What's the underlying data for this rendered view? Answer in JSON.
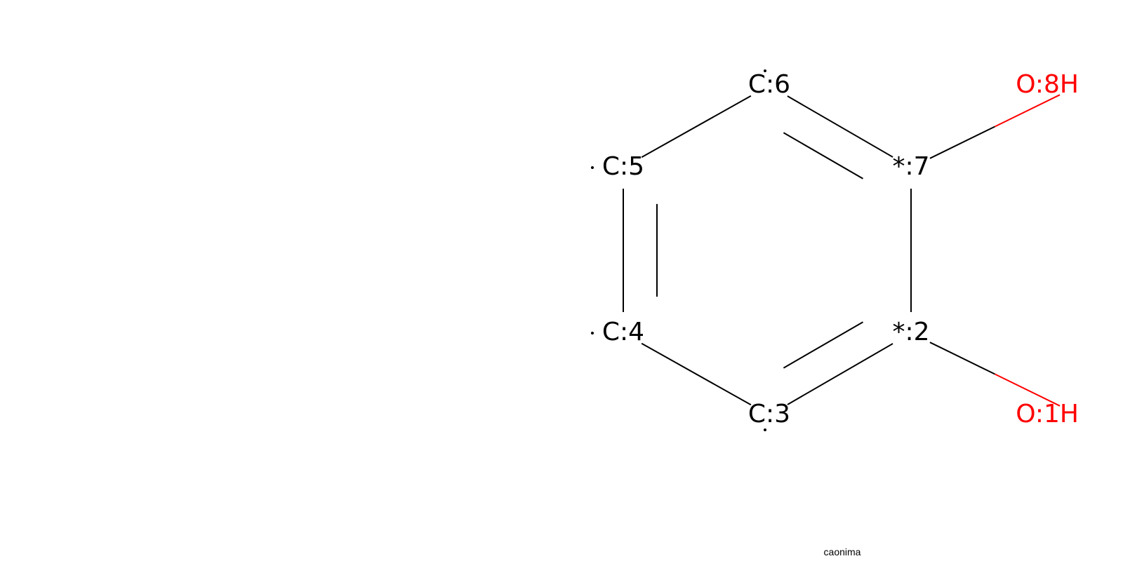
{
  "diagram": {
    "type": "molecule-structure",
    "colors": {
      "carbon": "#000000",
      "oxygen": "#ff0000",
      "background": "#ffffff"
    },
    "atoms": [
      {
        "id": "c6",
        "label": "C:6",
        "element": "C",
        "map": 6,
        "radical": "top"
      },
      {
        "id": "a7",
        "label": "*:7",
        "element": "*",
        "map": 7
      },
      {
        "id": "a2",
        "label": "*:2",
        "element": "*",
        "map": 2
      },
      {
        "id": "c3",
        "label": "C:3",
        "element": "C",
        "map": 3,
        "radical": "bottom"
      },
      {
        "id": "c4",
        "label": "C:4",
        "element": "C",
        "map": 4,
        "radical": "left"
      },
      {
        "id": "c5",
        "label": "C:5",
        "element": "C",
        "map": 5,
        "radical": "left"
      },
      {
        "id": "o8",
        "label": "O:8H",
        "element": "O",
        "map": 8
      },
      {
        "id": "o1",
        "label": "O:1H",
        "element": "O",
        "map": 1
      }
    ],
    "bonds": [
      {
        "from": "c5",
        "to": "c6",
        "order": 1
      },
      {
        "from": "c6",
        "to": "a7",
        "order": 2
      },
      {
        "from": "a7",
        "to": "a2",
        "order": 1
      },
      {
        "from": "a2",
        "to": "c3",
        "order": 2
      },
      {
        "from": "c3",
        "to": "c4",
        "order": 1
      },
      {
        "from": "c4",
        "to": "c5",
        "order": 2
      },
      {
        "from": "a7",
        "to": "o8",
        "order": 1
      },
      {
        "from": "a2",
        "to": "o1",
        "order": 1
      }
    ],
    "caption": "caonima"
  }
}
